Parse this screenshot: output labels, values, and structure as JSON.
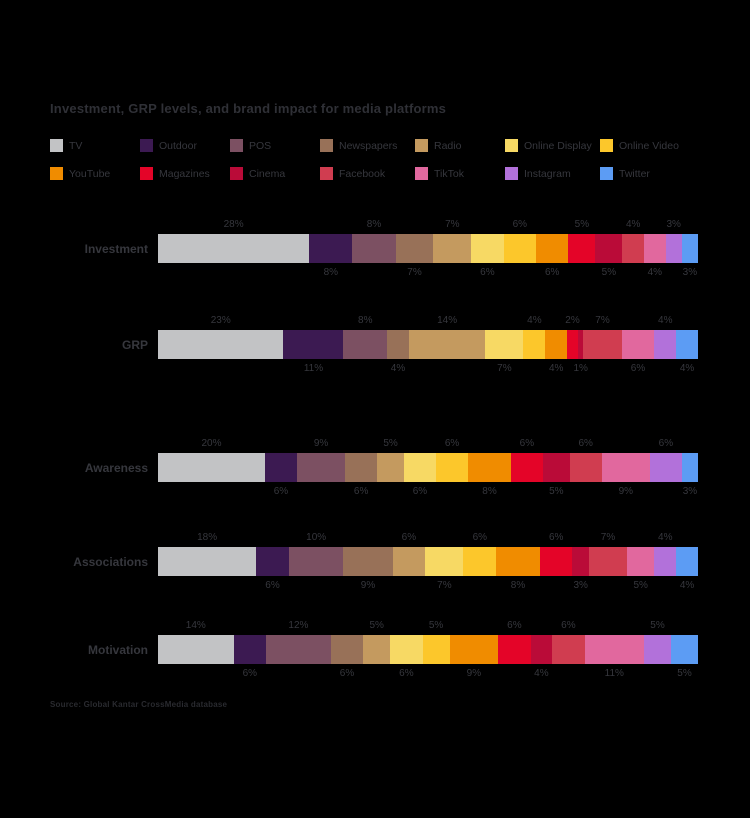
{
  "title": "Investment, GRP levels, and brand impact for media platforms",
  "source": "Source: Global Kantar CrossMedia database",
  "colors": {
    "background": "#000000",
    "text": "#36373d"
  },
  "legend": {
    "items": [
      {
        "label": "TV",
        "color": "#c2c3c5"
      },
      {
        "label": "Outdoor",
        "color": "#3c1a52"
      },
      {
        "label": "POS",
        "color": "#7c5062"
      },
      {
        "label": "Newspapers",
        "color": "#987158"
      },
      {
        "label": "Radio",
        "color": "#c49a5f"
      },
      {
        "label": "Online Display",
        "color": "#f7d964"
      },
      {
        "label": "Online Video",
        "color": "#fcc72b"
      },
      {
        "label": "YouTube",
        "color": "#f08c00"
      },
      {
        "label": "Magazines",
        "color": "#e40428"
      },
      {
        "label": "Cinema",
        "color": "#ba0b38"
      },
      {
        "label": "Facebook",
        "color": "#d03d50"
      },
      {
        "label": "TikTok",
        "color": "#e1689e"
      },
      {
        "label": "Instagram",
        "color": "#b271da"
      },
      {
        "label": "Twitter",
        "color": "#5c9cf4"
      }
    ]
  },
  "chart_data": {
    "type": "bar",
    "subtype": "horizontal-stacked-100-percent",
    "title": "Investment, GRP levels, and brand impact for media platforms",
    "unit": "%",
    "legend_position": "top",
    "categories": [
      "TV",
      "Outdoor",
      "POS",
      "Newspapers",
      "Radio",
      "Online Display",
      "Online Video",
      "YouTube",
      "Magazines",
      "Cinema",
      "Facebook",
      "TikTok",
      "Instagram",
      "Twitter"
    ],
    "label_placement": "alternating-above-below",
    "rows": [
      {
        "label": "Investment",
        "values": [
          28,
          8,
          8,
          7,
          7,
          6,
          6,
          6,
          5,
          5,
          4,
          4,
          3,
          3
        ]
      },
      {
        "label": "GRP",
        "values": [
          23,
          11,
          8,
          4,
          14,
          7,
          4,
          4,
          2,
          1,
          7,
          6,
          4,
          4
        ]
      },
      {
        "label": "Awareness",
        "values": [
          20,
          6,
          9,
          6,
          5,
          6,
          6,
          8,
          6,
          5,
          6,
          9,
          6,
          3
        ]
      },
      {
        "label": "Associations",
        "values": [
          18,
          6,
          10,
          9,
          6,
          7,
          6,
          8,
          6,
          3,
          7,
          5,
          4,
          4
        ]
      },
      {
        "label": "Motivation",
        "values": [
          14,
          6,
          12,
          6,
          5,
          6,
          5,
          9,
          6,
          4,
          6,
          11,
          5,
          5
        ]
      }
    ]
  }
}
